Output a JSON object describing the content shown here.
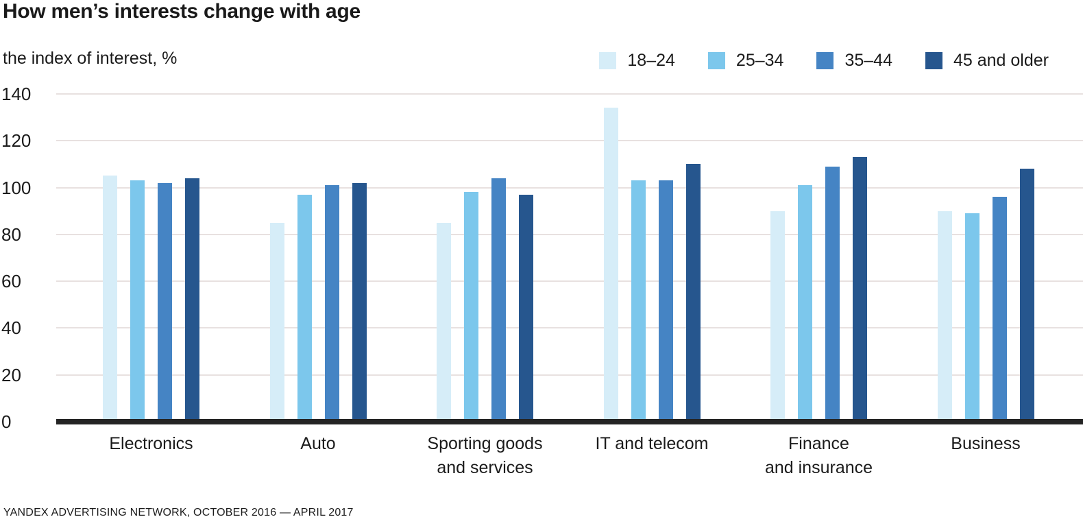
{
  "title": "How men’s interests change with age",
  "subtitle": "the index of interest, %",
  "footer": "YANDEX ADVERTISING NETWORK, OCTOBER 2016 — APRIL 2017",
  "colors": {
    "background": "#ffffff",
    "gridline": "#e8e1e0",
    "axis_line": "#242424",
    "text": "#1b1b1b",
    "series_18_24": "#d6edf8",
    "series_25_34": "#7cc7ec",
    "series_35_44": "#4584c4",
    "series_45_plus": "#26568e"
  },
  "chart_data": {
    "type": "bar",
    "title": "How men’s interests change with age",
    "ylabel": "the index of interest, %",
    "xlabel": "",
    "ylim": [
      0,
      140
    ],
    "ytick_step": 20,
    "yticks": [
      0,
      20,
      40,
      60,
      80,
      100,
      120,
      140
    ],
    "grid": true,
    "legend_position": "top-right",
    "categories": [
      "Electronics",
      "Auto",
      "Sporting goods\nand services",
      "IT and telecom",
      "Finance\nand insurance",
      "Business"
    ],
    "series": [
      {
        "name": "18–24",
        "color": "#d6edf8",
        "values": [
          105,
          85,
          85,
          134,
          90,
          90
        ]
      },
      {
        "name": "25–34",
        "color": "#7cc7ec",
        "values": [
          103,
          97,
          98,
          103,
          101,
          89
        ]
      },
      {
        "name": "35–44",
        "color": "#4584c4",
        "values": [
          102,
          101,
          104,
          103,
          109,
          96
        ]
      },
      {
        "name": "45 and older",
        "color": "#26568e",
        "values": [
          104,
          102,
          97,
          110,
          113,
          108
        ]
      }
    ],
    "source": "YANDEX ADVERTISING NETWORK, OCTOBER 2016 — APRIL 2017"
  }
}
